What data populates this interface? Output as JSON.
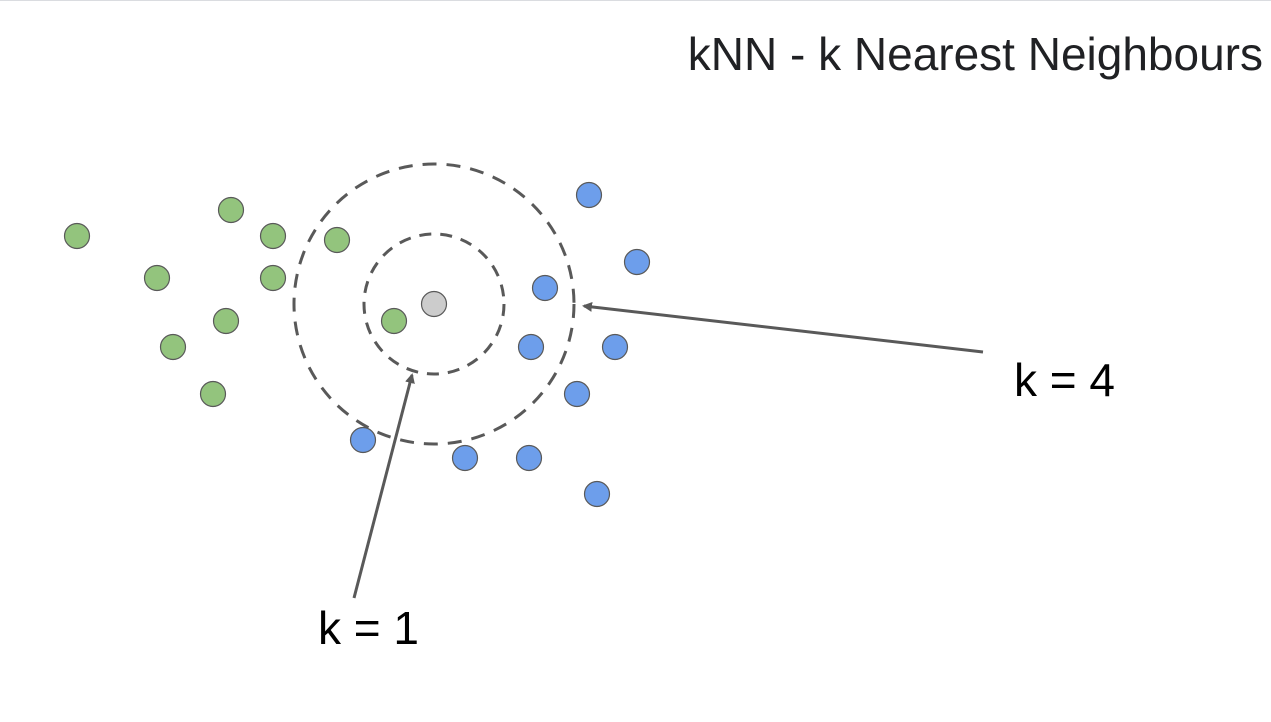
{
  "title": "kNN - k Nearest Neighbours",
  "labels": {
    "k4": "k = 4",
    "k1": "k = 1"
  },
  "colors": {
    "class_a": "#93c47d",
    "class_b": "#6d9eeb",
    "query": "#cccccc",
    "outline": "#595959",
    "circle": "#595959",
    "arrow": "#595959"
  }
}
